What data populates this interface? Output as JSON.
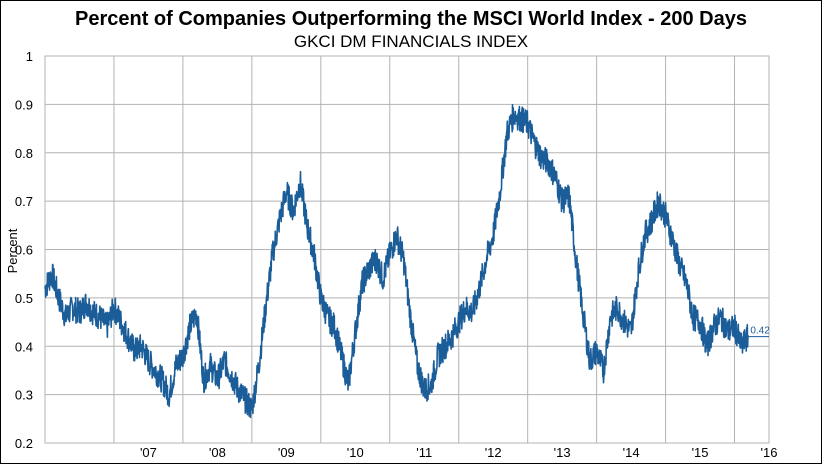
{
  "chart_data": {
    "type": "line",
    "title": "Percent of Companies Outperforming the MSCI World Index - 200 Days",
    "subtitle": "GKCI DM FINANCIALS INDEX",
    "xlabel": "",
    "ylabel": "Percent",
    "ylim": [
      0.2,
      1.0
    ],
    "xlim": [
      2006.0,
      2016.5
    ],
    "y_ticks": [
      "0.2",
      "0.3",
      "0.4",
      "0.5",
      "0.6",
      "0.7",
      "0.8",
      "0.9",
      "1"
    ],
    "x_tick_labels": [
      {
        "label": "'07",
        "x": 2007.5
      },
      {
        "label": "'08",
        "x": 2008.5
      },
      {
        "label": "'09",
        "x": 2009.5
      },
      {
        "label": "'10",
        "x": 2010.5
      },
      {
        "label": "'11",
        "x": 2011.5
      },
      {
        "label": "'12",
        "x": 2012.5
      },
      {
        "label": "'13",
        "x": 2013.5
      },
      {
        "label": "'14",
        "x": 2014.5
      },
      {
        "label": "'15",
        "x": 2015.5
      },
      {
        "label": "'16",
        "x": 2016.5
      }
    ],
    "grid": true,
    "line_color": "#1b5d99",
    "end_label": "0.42",
    "series": [
      {
        "x": [
          2006.0,
          2006.1,
          2006.2,
          2006.3,
          2006.4,
          2006.5,
          2006.6,
          2006.7,
          2006.8,
          2006.9,
          2007.0,
          2007.1,
          2007.2,
          2007.3,
          2007.4,
          2007.5,
          2007.6,
          2007.7,
          2007.8,
          2007.9,
          2008.0,
          2008.1,
          2008.2,
          2008.3,
          2008.4,
          2008.5,
          2008.6,
          2008.7,
          2008.8,
          2008.9,
          2009.0,
          2009.1,
          2009.2,
          2009.3,
          2009.4,
          2009.5,
          2009.6,
          2009.7,
          2009.8,
          2009.9,
          2010.0,
          2010.1,
          2010.2,
          2010.3,
          2010.4,
          2010.5,
          2010.6,
          2010.7,
          2010.8,
          2010.9,
          2011.0,
          2011.1,
          2011.2,
          2011.3,
          2011.4,
          2011.5,
          2011.6,
          2011.7,
          2011.8,
          2011.9,
          2012.0,
          2012.1,
          2012.2,
          2012.3,
          2012.4,
          2012.5,
          2012.6,
          2012.7,
          2012.8,
          2012.9,
          2013.0,
          2013.1,
          2013.2,
          2013.3,
          2013.4,
          2013.5,
          2013.6,
          2013.7,
          2013.8,
          2013.9,
          2014.0,
          2014.1,
          2014.2,
          2014.3,
          2014.4,
          2014.5,
          2014.6,
          2014.7,
          2014.8,
          2014.9,
          2015.0,
          2015.1,
          2015.2,
          2015.3,
          2015.4,
          2015.5,
          2015.6,
          2015.7,
          2015.8,
          2015.9,
          2016.0,
          2016.1,
          2016.2
        ],
        "y": [
          0.52,
          0.55,
          0.5,
          0.46,
          0.48,
          0.47,
          0.49,
          0.47,
          0.46,
          0.44,
          0.48,
          0.45,
          0.42,
          0.39,
          0.4,
          0.37,
          0.35,
          0.33,
          0.3,
          0.36,
          0.38,
          0.44,
          0.47,
          0.33,
          0.36,
          0.33,
          0.37,
          0.34,
          0.31,
          0.29,
          0.27,
          0.36,
          0.48,
          0.59,
          0.66,
          0.72,
          0.68,
          0.74,
          0.65,
          0.59,
          0.5,
          0.46,
          0.44,
          0.38,
          0.32,
          0.43,
          0.53,
          0.56,
          0.58,
          0.54,
          0.59,
          0.63,
          0.58,
          0.46,
          0.36,
          0.31,
          0.32,
          0.38,
          0.4,
          0.42,
          0.45,
          0.48,
          0.47,
          0.52,
          0.58,
          0.63,
          0.72,
          0.84,
          0.88,
          0.87,
          0.86,
          0.82,
          0.79,
          0.78,
          0.75,
          0.7,
          0.71,
          0.58,
          0.47,
          0.37,
          0.39,
          0.35,
          0.46,
          0.48,
          0.45,
          0.43,
          0.55,
          0.63,
          0.66,
          0.7,
          0.67,
          0.62,
          0.57,
          0.53,
          0.46,
          0.45,
          0.4,
          0.44,
          0.46,
          0.43,
          0.44,
          0.4,
          0.42
        ]
      }
    ]
  }
}
